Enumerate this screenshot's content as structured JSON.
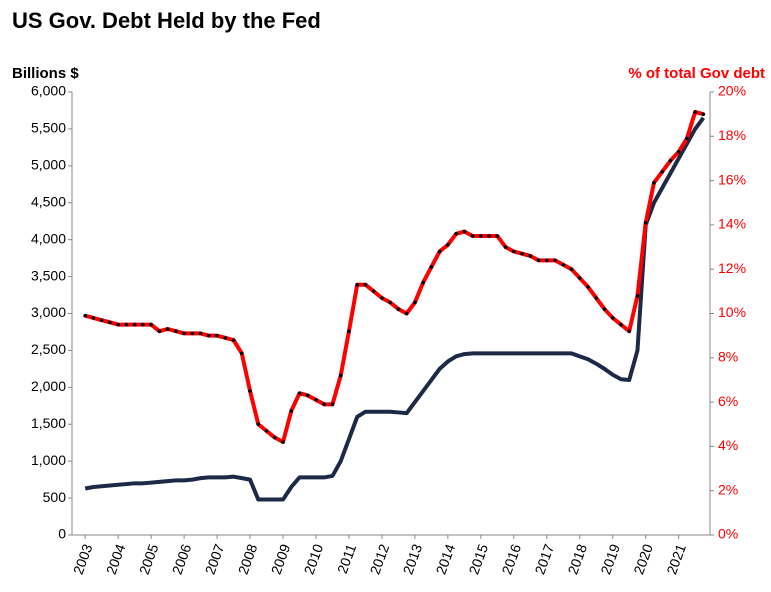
{
  "chart_data": {
    "type": "line",
    "title": "US Gov. Debt Held by the Fed",
    "y_label": "Billions  $",
    "y2_label": "% of total Gov debt",
    "x": [
      2003,
      2003.25,
      2003.5,
      2003.75,
      2004,
      2004.25,
      2004.5,
      2004.75,
      2005,
      2005.25,
      2005.5,
      2005.75,
      2006,
      2006.25,
      2006.5,
      2006.75,
      2007,
      2007.25,
      2007.5,
      2007.75,
      2008,
      2008.25,
      2008.5,
      2008.75,
      2009,
      2009.25,
      2009.5,
      2009.75,
      2010,
      2010.25,
      2010.5,
      2010.75,
      2011,
      2011.25,
      2011.5,
      2011.75,
      2012,
      2012.25,
      2012.5,
      2012.75,
      2013,
      2013.25,
      2013.5,
      2013.75,
      2014,
      2014.25,
      2014.5,
      2014.75,
      2015,
      2015.25,
      2015.5,
      2015.75,
      2016,
      2016.25,
      2016.5,
      2016.75,
      2017,
      2017.25,
      2017.5,
      2017.75,
      2018,
      2018.25,
      2018.5,
      2018.75,
      2019,
      2019.25,
      2019.5,
      2019.75,
      2020,
      2020.25,
      2020.5,
      2020.75,
      2021,
      2021.25,
      2021.5,
      2021.75
    ],
    "xlim": [
      2002.6,
      2021.95
    ],
    "xticks": [
      2003,
      2004,
      2005,
      2006,
      2007,
      2008,
      2009,
      2010,
      2011,
      2012,
      2013,
      2014,
      2015,
      2016,
      2017,
      2018,
      2019,
      2020,
      2021
    ],
    "ylim": [
      0,
      6000
    ],
    "yticks": [
      0,
      500,
      {
        "value": 1000,
        "label": "1,000"
      },
      {
        "value": 1500,
        "label": "1,500"
      },
      {
        "value": 2000,
        "label": "2,000"
      },
      {
        "value": 2500,
        "label": "2,500"
      },
      {
        "value": 3000,
        "label": "3,000"
      },
      {
        "value": 3500,
        "label": "3,500"
      },
      {
        "value": 4000,
        "label": "4,000"
      },
      {
        "value": 4500,
        "label": "4,500"
      },
      {
        "value": 5000,
        "label": "5,000"
      },
      {
        "value": 5500,
        "label": "5,500"
      },
      {
        "value": 6000,
        "label": "6,000"
      }
    ],
    "y2lim": [
      0,
      20
    ],
    "y2ticks": [
      {
        "value": 0,
        "label": "0%"
      },
      {
        "value": 2,
        "label": "2%"
      },
      {
        "value": 4,
        "label": "4%"
      },
      {
        "value": 6,
        "label": "6%"
      },
      {
        "value": 8,
        "label": "8%"
      },
      {
        "value": 10,
        "label": "10%"
      },
      {
        "value": 12,
        "label": "12%"
      },
      {
        "value": 14,
        "label": "14%"
      },
      {
        "value": 16,
        "label": "16%"
      },
      {
        "value": 18,
        "label": "18%"
      },
      {
        "value": 20,
        "label": "20%"
      }
    ],
    "grid": false,
    "series": [
      {
        "color": "#1c2a48",
        "values": [
          630,
          650,
          660,
          670,
          680,
          690,
          700,
          700,
          710,
          720,
          730,
          740,
          740,
          750,
          770,
          780,
          780,
          780,
          790,
          770,
          750,
          480,
          480,
          480,
          480,
          650,
          780,
          780,
          780,
          780,
          800,
          1000,
          1300,
          1600,
          1670,
          1670,
          1670,
          1670,
          1660,
          1650,
          1800,
          1950,
          2100,
          2250,
          2350,
          2420,
          2450,
          2460,
          2460,
          2460,
          2460,
          2460,
          2460,
          2460,
          2460,
          2460,
          2460,
          2460,
          2460,
          2460,
          2420,
          2380,
          2320,
          2250,
          2170,
          2110,
          2100,
          2500,
          4200,
          4500,
          4700,
          4900,
          5100,
          5300,
          5500,
          5650
        ]
      },
      {
        "color": "#ff0000",
        "marker_color": "#000000",
        "axis": "y2",
        "values": [
          9.9,
          9.8,
          9.7,
          9.6,
          9.5,
          9.5,
          9.5,
          9.5,
          9.5,
          9.2,
          9.3,
          9.2,
          9.1,
          9.1,
          9.1,
          9.0,
          9.0,
          8.9,
          8.8,
          8.2,
          6.5,
          5.0,
          4.7,
          4.4,
          4.2,
          5.6,
          6.4,
          6.3,
          6.1,
          5.9,
          5.9,
          7.2,
          9.2,
          11.3,
          11.3,
          11.0,
          10.7,
          10.5,
          10.2,
          10.0,
          10.5,
          11.4,
          12.1,
          12.8,
          13.1,
          13.6,
          13.7,
          13.5,
          13.5,
          13.5,
          13.5,
          13.0,
          12.8,
          12.7,
          12.6,
          12.4,
          12.4,
          12.4,
          12.2,
          12.0,
          11.6,
          11.2,
          10.7,
          10.2,
          9.8,
          9.5,
          9.2,
          10.8,
          14.1,
          15.9,
          16.4,
          16.9,
          17.3,
          17.9,
          19.1,
          19.0
        ]
      }
    ]
  }
}
